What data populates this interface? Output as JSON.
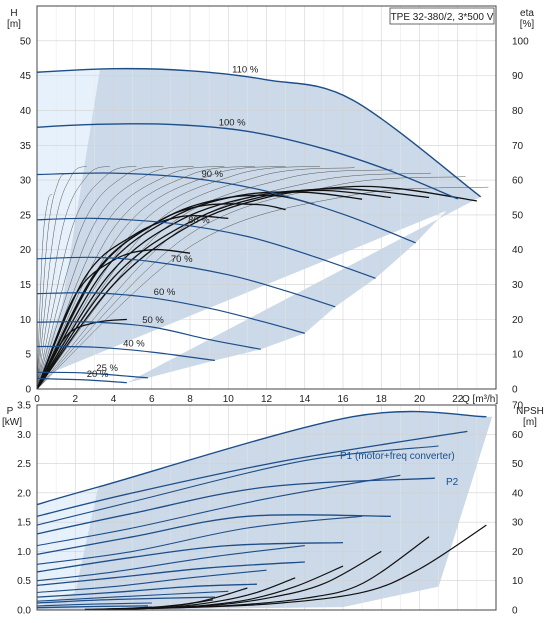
{
  "chart_data": [
    {
      "type": "line",
      "title": "TPE 32-380/2, 3*500 V",
      "xlabel": "Q [m³/h]",
      "ylabel_left": [
        "H",
        "[m]"
      ],
      "ylabel_right": [
        "eta",
        "[%]"
      ],
      "xlim": [
        0,
        24
      ],
      "ylim_left": [
        0,
        55
      ],
      "ylim_right": [
        0,
        110
      ],
      "x_ticks": [
        0,
        2,
        4,
        6,
        8,
        10,
        12,
        14,
        16,
        18,
        20,
        22
      ],
      "y_ticks_left": [
        0,
        5,
        10,
        15,
        20,
        25,
        30,
        35,
        40,
        45,
        50
      ],
      "y_ticks_right": [
        0,
        10,
        20,
        30,
        40,
        50,
        60,
        70,
        80,
        90,
        100
      ],
      "grid": true,
      "speed_curves": [
        {
          "name": "110 %",
          "label_q": 10.2,
          "points": [
            [
              0,
              45.5
            ],
            [
              4,
              46.0
            ],
            [
              8,
              45.7
            ],
            [
              12,
              44.4
            ],
            [
              16.5,
              41.5
            ],
            [
              23.2,
              27.6
            ]
          ]
        },
        {
          "name": "100 %",
          "label_q": 9.5,
          "points": [
            [
              0,
              37.6
            ],
            [
              3,
              38.0
            ],
            [
              7,
              38.0
            ],
            [
              11,
              37.0
            ],
            [
              15,
              34.5
            ],
            [
              18.5,
              31.3
            ],
            [
              22,
              27.3
            ]
          ]
        },
        {
          "name": "90 %",
          "label_q": 8.6,
          "points": [
            [
              0,
              30.8
            ],
            [
              4,
              31.0
            ],
            [
              8,
              30.3
            ],
            [
              12,
              28.4
            ],
            [
              16,
              25.1
            ],
            [
              19.8,
              21.0
            ]
          ]
        },
        {
          "name": "80 %",
          "label_q": 7.9,
          "points": [
            [
              0,
              24.3
            ],
            [
              3,
              24.5
            ],
            [
              7,
              23.8
            ],
            [
              11,
              21.9
            ],
            [
              14.5,
              19.0
            ],
            [
              17.7,
              15.9
            ]
          ]
        },
        {
          "name": "70 %",
          "label_q": 7.0,
          "points": [
            [
              0,
              18.7
            ],
            [
              3,
              18.9
            ],
            [
              6,
              18.3
            ],
            [
              10,
              16.4
            ],
            [
              13,
              14.1
            ],
            [
              15.6,
              11.8
            ]
          ]
        },
        {
          "name": "60 %",
          "label_q": 6.1,
          "points": [
            [
              0,
              13.7
            ],
            [
              3,
              13.8
            ],
            [
              6,
              13.1
            ],
            [
              9,
              11.6
            ],
            [
              11.5,
              9.9
            ],
            [
              14.0,
              8.0
            ]
          ]
        },
        {
          "name": "50 %",
          "label_q": 5.5,
          "points": [
            [
              0,
              9.6
            ],
            [
              3,
              9.6
            ],
            [
              6,
              8.9
            ],
            [
              9,
              7.1
            ],
            [
              11.7,
              5.7
            ]
          ]
        },
        {
          "name": "40 %",
          "label_q": 4.5,
          "points": [
            [
              0,
              6.1
            ],
            [
              3,
              6.0
            ],
            [
              6,
              5.3
            ],
            [
              9.3,
              4.1
            ]
          ]
        },
        {
          "name": "25 %",
          "label_q": 3.1,
          "points": [
            [
              0,
              2.4
            ],
            [
              2.5,
              2.3
            ],
            [
              5.8,
              1.6
            ]
          ]
        },
        {
          "name": "20 %",
          "label_q": 2.6,
          "points": [
            [
              0,
              1.5
            ],
            [
              2.5,
              1.3
            ],
            [
              4.7,
              0.9
            ]
          ]
        }
      ]
    },
    {
      "type": "line",
      "xlim": [
        0,
        24
      ],
      "ylabel_left": [
        "P",
        "[kW]"
      ],
      "ylabel_right": [
        "NPSH",
        "[m]"
      ],
      "ylim_left": [
        0,
        3.5
      ],
      "ylim_right": [
        0,
        70
      ],
      "y_ticks_left": [
        0.0,
        0.5,
        1.0,
        1.5,
        2.0,
        2.5,
        3.0,
        3.5
      ],
      "y_ticks_right": [
        0,
        10,
        20,
        30,
        40,
        50,
        60,
        70
      ],
      "grid": true,
      "series_labels": [
        "P1 (motor+freq converter)",
        "P2"
      ],
      "p1_curves": [
        {
          "points": [
            [
              0,
              1.8
            ],
            [
              3.2,
              2.1
            ],
            [
              16.5,
              3.3
            ],
            [
              23.5,
              3.3
            ]
          ]
        },
        {
          "points": [
            [
              0,
              1.45
            ],
            [
              5,
              1.85
            ],
            [
              14,
              2.55
            ],
            [
              21,
              2.8
            ]
          ]
        },
        {
          "points": [
            [
              0,
              1.1
            ],
            [
              5,
              1.4
            ],
            [
              12,
              1.9
            ],
            [
              19,
              2.3
            ]
          ]
        },
        {
          "points": [
            [
              0,
              0.78
            ],
            [
              5,
              1.0
            ],
            [
              11,
              1.4
            ],
            [
              17,
              1.6
            ]
          ]
        },
        {
          "points": [
            [
              0,
              0.5
            ],
            [
              4,
              0.65
            ],
            [
              9,
              0.9
            ],
            [
              14,
              1.1
            ]
          ]
        },
        {
          "points": [
            [
              0,
              0.3
            ],
            [
              4,
              0.4
            ],
            [
              8,
              0.55
            ],
            [
              12,
              0.68
            ]
          ]
        },
        {
          "points": [
            [
              0,
              0.15
            ],
            [
              4,
              0.22
            ],
            [
              10,
              0.32
            ]
          ]
        },
        {
          "points": [
            [
              0,
              0.07
            ],
            [
              3,
              0.1
            ],
            [
              6,
              0.12
            ]
          ]
        }
      ],
      "p2_curves": [
        {
          "points": [
            [
              0,
              1.6
            ],
            [
              5,
              2.0
            ],
            [
              13,
              2.55
            ],
            [
              22.5,
              3.05
            ]
          ]
        },
        {
          "points": [
            [
              0,
              1.3
            ],
            [
              5,
              1.65
            ],
            [
              12,
              2.1
            ],
            [
              20.8,
              2.25
            ]
          ]
        },
        {
          "points": [
            [
              0,
              0.95
            ],
            [
              5,
              1.25
            ],
            [
              11,
              1.6
            ],
            [
              18.5,
              1.6
            ]
          ]
        },
        {
          "points": [
            [
              0,
              0.65
            ],
            [
              5,
              0.9
            ],
            [
              10,
              1.1
            ],
            [
              16,
              1.15
            ]
          ]
        },
        {
          "points": [
            [
              0,
              0.42
            ],
            [
              4,
              0.55
            ],
            [
              9,
              0.72
            ],
            [
              14,
              0.82
            ]
          ]
        },
        {
          "points": [
            [
              0,
              0.22
            ],
            [
              4,
              0.3
            ],
            [
              8,
              0.4
            ],
            [
              11.5,
              0.44
            ]
          ]
        },
        {
          "points": [
            [
              0,
              0.12
            ],
            [
              4,
              0.18
            ],
            [
              9.3,
              0.22
            ]
          ]
        },
        {
          "points": [
            [
              0,
              0.04
            ],
            [
              3,
              0.06
            ],
            [
              5.8,
              0.07
            ]
          ]
        }
      ],
      "npsh_curves": [
        {
          "points": [
            [
              6,
              0.5
            ],
            [
              12,
              2
            ],
            [
              17,
              6
            ],
            [
              20,
              14
            ],
            [
              23.5,
              29
            ]
          ]
        },
        {
          "points": [
            [
              5.5,
              0.5
            ],
            [
              10,
              1.5
            ],
            [
              14,
              4
            ],
            [
              17,
              9
            ],
            [
              20.5,
              25
            ]
          ]
        },
        {
          "points": [
            [
              5,
              0.4
            ],
            [
              9,
              1.5
            ],
            [
              12,
              4
            ],
            [
              15,
              9
            ],
            [
              18,
              20
            ]
          ]
        },
        {
          "points": [
            [
              4.5,
              0.3
            ],
            [
              8,
              1.2
            ],
            [
              11,
              3.5
            ],
            [
              13.5,
              8
            ],
            [
              16,
              15
            ]
          ]
        },
        {
          "points": [
            [
              4,
              0.3
            ],
            [
              7,
              1.0
            ],
            [
              9.5,
              3.0
            ],
            [
              11.5,
              6
            ],
            [
              13.5,
              11
            ]
          ]
        },
        {
          "points": [
            [
              3.5,
              0.3
            ],
            [
              6,
              0.8
            ],
            [
              8,
              2.2
            ],
            [
              9.5,
              4.5
            ],
            [
              11,
              7.5
            ]
          ]
        },
        {
          "points": [
            [
              3,
              0.2
            ],
            [
              5.5,
              0.7
            ],
            [
              7.5,
              1.8
            ],
            [
              9.2,
              3.5
            ]
          ]
        },
        {
          "points": [
            [
              2.5,
              0.2
            ],
            [
              4.5,
              0.5
            ],
            [
              6,
              1.0
            ]
          ]
        }
      ]
    }
  ],
  "colors": {
    "area_fill": "#cbd9e8",
    "area_light": "#e6f1fb",
    "curve": "#1d4e89",
    "thin": "#555555",
    "eta": "#111111",
    "grid": "#d2d2d2",
    "label": "#1d4e89"
  }
}
